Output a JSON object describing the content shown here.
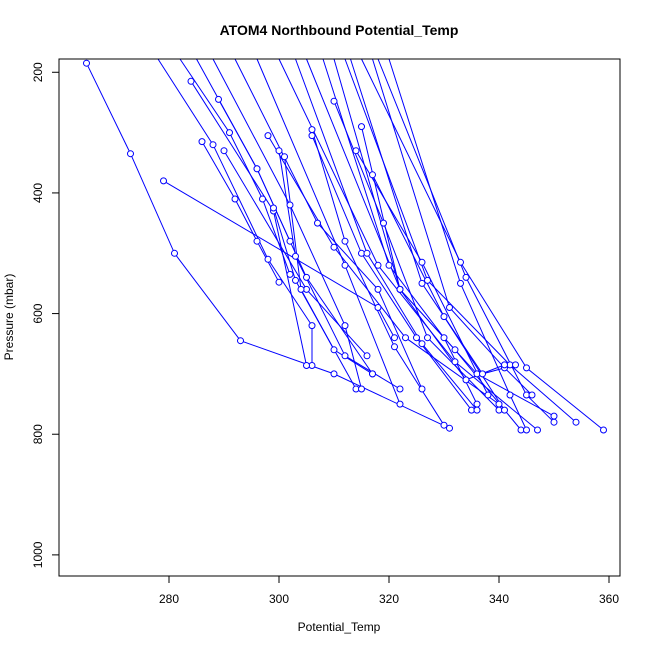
{
  "chart_data": {
    "type": "scatter",
    "title": "ATOM4 Northbound Potential_Temp",
    "xlabel": "Potential_Temp",
    "ylabel": "Pressure (mbar)",
    "xlim": [
      260,
      362
    ],
    "ylim": [
      1035,
      178
    ],
    "y_reversed": true,
    "x_ticks": [
      280,
      300,
      320,
      340,
      360
    ],
    "y_ticks": [
      200,
      400,
      600,
      800,
      1000
    ],
    "grid": false,
    "series_color": "#0000ff",
    "marker": "open-circle",
    "profiles": [
      {
        "x": [
          265,
          273,
          281,
          293,
          310,
          331
        ],
        "y": [
          185,
          335,
          500,
          645,
          700,
          790
        ]
      },
      {
        "x": [
          279,
          318,
          321
        ],
        "y": [
          380,
          590,
          640
        ]
      },
      {
        "x": [
          286,
          292,
          296,
          300
        ],
        "y": [
          315,
          410,
          480,
          548
        ]
      },
      {
        "x": [
          289,
          296,
          302
        ],
        "y": [
          245,
          360,
          480
        ]
      },
      {
        "x": [
          278,
          288,
          298,
          306,
          306
        ],
        "y": [
          178,
          320,
          510,
          620,
          686
        ]
      },
      {
        "x": [
          284,
          299,
          305
        ],
        "y": [
          215,
          430,
          686
        ]
      },
      {
        "x": [
          290,
          305,
          316
        ],
        "y": [
          330,
          560,
          670
        ]
      },
      {
        "x": [
          299,
          303,
          314
        ],
        "y": [
          425,
          545,
          725
        ]
      },
      {
        "x": [
          300,
          303,
          312,
          322
        ],
        "y": [
          330,
          505,
          670,
          725
        ]
      },
      {
        "x": [
          301,
          304,
          310,
          317
        ],
        "y": [
          340,
          560,
          660,
          700
        ]
      },
      {
        "x": [
          306,
          312,
          321,
          330
        ],
        "y": [
          295,
          480,
          655,
          785
        ]
      },
      {
        "x": [
          298,
          310,
          323,
          340
        ],
        "y": [
          305,
          490,
          640,
          750
        ]
      },
      {
        "x": [
          306,
          315,
          325,
          335
        ],
        "y": [
          305,
          500,
          640,
          760
        ]
      },
      {
        "x": [
          310,
          319,
          327,
          340
        ],
        "y": [
          248,
          450,
          640,
          760
        ]
      },
      {
        "x": [
          315,
          322,
          332,
          344
        ],
        "y": [
          290,
          560,
          660,
          793
        ]
      },
      {
        "x": [
          314,
          326,
          338
        ],
        "y": [
          330,
          515,
          735
        ]
      },
      {
        "x": [
          317,
          330,
          341
        ],
        "y": [
          370,
          605,
          760
        ]
      },
      {
        "x": [
          300,
          318,
          332,
          347
        ],
        "y": [
          178,
          520,
          680,
          793
        ]
      },
      {
        "x": [
          305,
          322,
          336,
          350
        ],
        "y": [
          178,
          560,
          700,
          770
        ]
      },
      {
        "x": [
          312,
          327,
          342,
          354
        ],
        "y": [
          178,
          545,
          685,
          780
        ]
      },
      {
        "x": [
          315,
          333,
          345,
          359
        ],
        "y": [
          178,
          515,
          690,
          793
        ]
      },
      {
        "x": [
          318,
          334,
          345,
          350
        ],
        "y": [
          178,
          540,
          735,
          780
        ]
      },
      {
        "x": [
          320,
          333,
          342,
          345
        ],
        "y": [
          178,
          550,
          735,
          793
        ]
      },
      {
        "x": [
          317,
          331,
          341,
          346
        ],
        "y": [
          178,
          590,
          690,
          735
        ]
      },
      {
        "x": [
          313,
          326,
          337,
          343
        ],
        "y": [
          178,
          550,
          700,
          685
        ]
      },
      {
        "x": [
          310,
          322,
          334,
          341
        ],
        "y": [
          178,
          560,
          710,
          685
        ]
      },
      {
        "x": [
          308,
          320,
          330,
          336
        ],
        "y": [
          178,
          520,
          640,
          750
        ]
      },
      {
        "x": [
          303,
          316,
          326,
          336
        ],
        "y": [
          178,
          500,
          650,
          760
        ]
      },
      {
        "x": [
          296,
          312,
          322
        ],
        "y": [
          178,
          520,
          750
        ]
      },
      {
        "x": [
          292,
          307,
          318,
          326
        ],
        "y": [
          178,
          450,
          560,
          725
        ]
      },
      {
        "x": [
          288,
          302,
          312,
          315
        ],
        "y": [
          178,
          420,
          620,
          725
        ]
      },
      {
        "x": [
          285,
          296,
          305,
          317
        ],
        "y": [
          178,
          360,
          540,
          700
        ]
      },
      {
        "x": [
          282,
          291,
          297,
          302
        ],
        "y": [
          178,
          300,
          410,
          535
        ]
      }
    ]
  }
}
